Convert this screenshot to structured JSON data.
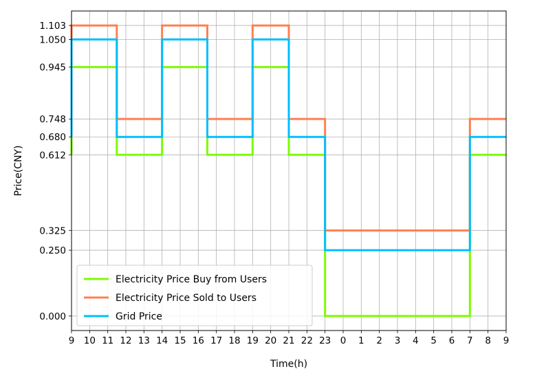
{
  "chart_data": {
    "type": "line",
    "step": "post",
    "xlabel": "Time(h)",
    "ylabel": "Price(CNY)",
    "x_start_hour": 9,
    "x_span_hours": 24,
    "xticks": [
      "9",
      "10",
      "11",
      "12",
      "13",
      "14",
      "15",
      "16",
      "17",
      "18",
      "19",
      "20",
      "21",
      "22",
      "23",
      "0",
      "1",
      "2",
      "3",
      "4",
      "5",
      "6",
      "7",
      "8",
      "9"
    ],
    "yticks": [
      "0.000",
      "0.250",
      "0.325",
      "0.612",
      "0.680",
      "0.748",
      "0.945",
      "1.050",
      "1.103"
    ],
    "ylim": [
      -0.055,
      1.158
    ],
    "grid": true,
    "legend_position": "lower-left",
    "series": [
      {
        "name": "Electricity Price Buy from Users",
        "color": "#7cfc00",
        "points": [
          [
            "9:00",
            0.612
          ],
          [
            "9:00",
            0.945
          ],
          [
            "11:30",
            0.945
          ],
          [
            "11:30",
            0.612
          ],
          [
            "14:00",
            0.612
          ],
          [
            "14:00",
            0.945
          ],
          [
            "16:30",
            0.945
          ],
          [
            "16:30",
            0.612
          ],
          [
            "19:00",
            0.612
          ],
          [
            "19:00",
            0.945
          ],
          [
            "21:00",
            0.945
          ],
          [
            "21:00",
            0.612
          ],
          [
            "23:00",
            0.612
          ],
          [
            "23:00",
            0.0
          ],
          [
            "7:00",
            0.0
          ],
          [
            "7:00",
            0.612
          ],
          [
            "9:00",
            0.612
          ]
        ]
      },
      {
        "name": "Electricity Price Sold to Users",
        "color": "#ff7f50",
        "points": [
          [
            "9:00",
            0.748
          ],
          [
            "9:00",
            1.103
          ],
          [
            "11:30",
            1.103
          ],
          [
            "11:30",
            0.748
          ],
          [
            "14:00",
            0.748
          ],
          [
            "14:00",
            1.103
          ],
          [
            "16:30",
            1.103
          ],
          [
            "16:30",
            0.748
          ],
          [
            "19:00",
            0.748
          ],
          [
            "19:00",
            1.103
          ],
          [
            "21:00",
            1.103
          ],
          [
            "21:00",
            0.748
          ],
          [
            "23:00",
            0.748
          ],
          [
            "23:00",
            0.325
          ],
          [
            "7:00",
            0.325
          ],
          [
            "7:00",
            0.748
          ],
          [
            "9:00",
            0.748
          ]
        ]
      },
      {
        "name": "Grid Price",
        "color": "#00bfff",
        "points": [
          [
            "9:00",
            0.68
          ],
          [
            "9:00",
            1.05
          ],
          [
            "11:30",
            1.05
          ],
          [
            "11:30",
            0.68
          ],
          [
            "14:00",
            0.68
          ],
          [
            "14:00",
            1.05
          ],
          [
            "16:30",
            1.05
          ],
          [
            "16:30",
            0.68
          ],
          [
            "19:00",
            0.68
          ],
          [
            "19:00",
            1.05
          ],
          [
            "21:00",
            1.05
          ],
          [
            "21:00",
            0.68
          ],
          [
            "23:00",
            0.68
          ],
          [
            "23:00",
            0.25
          ],
          [
            "7:00",
            0.25
          ],
          [
            "7:00",
            0.68
          ],
          [
            "9:00",
            0.68
          ]
        ]
      }
    ]
  }
}
